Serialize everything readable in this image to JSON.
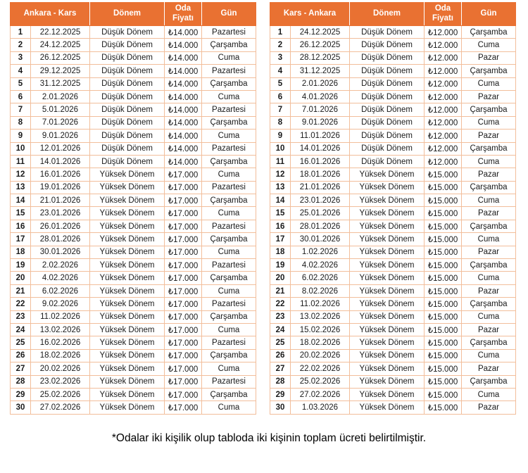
{
  "colors": {
    "header_bg": "#E97132",
    "header_text": "#FFFFFF",
    "border": "#F2BE9B",
    "cell_text": "#1A1A1A"
  },
  "tables": [
    {
      "route": "Ankara - Kars",
      "headers": [
        "Dönem",
        "Oda Fiyatı",
        "Gün"
      ],
      "rows": [
        [
          "1",
          "22.12.2025",
          "Düşük Dönem",
          "₺14.000",
          "Pazartesi"
        ],
        [
          "2",
          "24.12.2025",
          "Düşük Dönem",
          "₺14.000",
          "Çarşamba"
        ],
        [
          "3",
          "26.12.2025",
          "Düşük Dönem",
          "₺14.000",
          "Cuma"
        ],
        [
          "4",
          "29.12.2025",
          "Düşük Dönem",
          "₺14.000",
          "Pazartesi"
        ],
        [
          "5",
          "31.12.2025",
          "Düşük Dönem",
          "₺14.000",
          "Çarşamba"
        ],
        [
          "6",
          "2.01.2026",
          "Düşük Dönem",
          "₺14.000",
          "Cuma"
        ],
        [
          "7",
          "5.01.2026",
          "Düşük Dönem",
          "₺14.000",
          "Pazartesi"
        ],
        [
          "8",
          "7.01.2026",
          "Düşük Dönem",
          "₺14.000",
          "Çarşamba"
        ],
        [
          "9",
          "9.01.2026",
          "Düşük Dönem",
          "₺14.000",
          "Cuma"
        ],
        [
          "10",
          "12.01.2026",
          "Düşük Dönem",
          "₺14.000",
          "Pazartesi"
        ],
        [
          "11",
          "14.01.2026",
          "Düşük Dönem",
          "₺14.000",
          "Çarşamba"
        ],
        [
          "12",
          "16.01.2026",
          "Yüksek Dönem",
          "₺17.000",
          "Cuma"
        ],
        [
          "13",
          "19.01.2026",
          "Yüksek Dönem",
          "₺17.000",
          "Pazartesi"
        ],
        [
          "14",
          "21.01.2026",
          "Yüksek Dönem",
          "₺17.000",
          "Çarşamba"
        ],
        [
          "15",
          "23.01.2026",
          "Yüksek Dönem",
          "₺17.000",
          "Cuma"
        ],
        [
          "16",
          "26.01.2026",
          "Yüksek Dönem",
          "₺17.000",
          "Pazartesi"
        ],
        [
          "17",
          "28.01.2026",
          "Yüksek Dönem",
          "₺17.000",
          "Çarşamba"
        ],
        [
          "18",
          "30.01.2026",
          "Yüksek Dönem",
          "₺17.000",
          "Cuma"
        ],
        [
          "19",
          "2.02.2026",
          "Yüksek Dönem",
          "₺17.000",
          "Pazartesi"
        ],
        [
          "20",
          "4.02.2026",
          "Yüksek Dönem",
          "₺17.000",
          "Çarşamba"
        ],
        [
          "21",
          "6.02.2026",
          "Yüksek Dönem",
          "₺17.000",
          "Cuma"
        ],
        [
          "22",
          "9.02.2026",
          "Yüksek Dönem",
          "₺17.000",
          "Pazartesi"
        ],
        [
          "23",
          "11.02.2026",
          "Yüksek Dönem",
          "₺17.000",
          "Çarşamba"
        ],
        [
          "24",
          "13.02.2026",
          "Yüksek Dönem",
          "₺17.000",
          "Cuma"
        ],
        [
          "25",
          "16.02.2026",
          "Yüksek Dönem",
          "₺17.000",
          "Pazartesi"
        ],
        [
          "26",
          "18.02.2026",
          "Yüksek Dönem",
          "₺17.000",
          "Çarşamba"
        ],
        [
          "27",
          "20.02.2026",
          "Yüksek Dönem",
          "₺17.000",
          "Cuma"
        ],
        [
          "28",
          "23.02.2026",
          "Yüksek Dönem",
          "₺17.000",
          "Pazartesi"
        ],
        [
          "29",
          "25.02.2026",
          "Yüksek Dönem",
          "₺17.000",
          "Çarşamba"
        ],
        [
          "30",
          "27.02.2026",
          "Yüksek Dönem",
          "₺17.000",
          "Cuma"
        ]
      ]
    },
    {
      "route": "Kars - Ankara",
      "headers": [
        "Dönem",
        "Oda Fiyatı",
        "Gün"
      ],
      "rows": [
        [
          "1",
          "24.12.2025",
          "Düşük Dönem",
          "₺12.000",
          "Çarşamba"
        ],
        [
          "2",
          "26.12.2025",
          "Düşük Dönem",
          "₺12.000",
          "Cuma"
        ],
        [
          "3",
          "28.12.2025",
          "Düşük Dönem",
          "₺12.000",
          "Pazar"
        ],
        [
          "4",
          "31.12.2025",
          "Düşük Dönem",
          "₺12.000",
          "Çarşamba"
        ],
        [
          "5",
          "2.01.2026",
          "Düşük Dönem",
          "₺12.000",
          "Cuma"
        ],
        [
          "6",
          "4.01.2026",
          "Düşük Dönem",
          "₺12.000",
          "Pazar"
        ],
        [
          "7",
          "7.01.2026",
          "Düşük Dönem",
          "₺12.000",
          "Çarşamba"
        ],
        [
          "8",
          "9.01.2026",
          "Düşük Dönem",
          "₺12.000",
          "Cuma"
        ],
        [
          "9",
          "11.01.2026",
          "Düşük Dönem",
          "₺12.000",
          "Pazar"
        ],
        [
          "10",
          "14.01.2026",
          "Düşük Dönem",
          "₺12.000",
          "Çarşamba"
        ],
        [
          "11",
          "16.01.2026",
          "Düşük Dönem",
          "₺12.000",
          "Cuma"
        ],
        [
          "12",
          "18.01.2026",
          "Yüksek Dönem",
          "₺15.000",
          "Pazar"
        ],
        [
          "13",
          "21.01.2026",
          "Yüksek Dönem",
          "₺15.000",
          "Çarşamba"
        ],
        [
          "14",
          "23.01.2026",
          "Yüksek Dönem",
          "₺15.000",
          "Cuma"
        ],
        [
          "15",
          "25.01.2026",
          "Yüksek Dönem",
          "₺15.000",
          "Pazar"
        ],
        [
          "16",
          "28.01.2026",
          "Yüksek Dönem",
          "₺15.000",
          "Çarşamba"
        ],
        [
          "17",
          "30.01.2026",
          "Yüksek Dönem",
          "₺15.000",
          "Cuma"
        ],
        [
          "18",
          "1.02.2026",
          "Yüksek Dönem",
          "₺15.000",
          "Pazar"
        ],
        [
          "19",
          "4.02.2026",
          "Yüksek Dönem",
          "₺15.000",
          "Çarşamba"
        ],
        [
          "20",
          "6.02.2026",
          "Yüksek Dönem",
          "₺15.000",
          "Cuma"
        ],
        [
          "21",
          "8.02.2026",
          "Yüksek Dönem",
          "₺15.000",
          "Pazar"
        ],
        [
          "22",
          "11.02.2026",
          "Yüksek Dönem",
          "₺15.000",
          "Çarşamba"
        ],
        [
          "23",
          "13.02.2026",
          "Yüksek Dönem",
          "₺15.000",
          "Cuma"
        ],
        [
          "24",
          "15.02.2026",
          "Yüksek Dönem",
          "₺15.000",
          "Pazar"
        ],
        [
          "25",
          "18.02.2026",
          "Yüksek Dönem",
          "₺15.000",
          "Çarşamba"
        ],
        [
          "26",
          "20.02.2026",
          "Yüksek Dönem",
          "₺15.000",
          "Cuma"
        ],
        [
          "27",
          "22.02.2026",
          "Yüksek Dönem",
          "₺15.000",
          "Pazar"
        ],
        [
          "28",
          "25.02.2026",
          "Yüksek Dönem",
          "₺15.000",
          "Çarşamba"
        ],
        [
          "29",
          "27.02.2026",
          "Yüksek Dönem",
          "₺15.000",
          "Cuma"
        ],
        [
          "30",
          "1.03.2026",
          "Yüksek Dönem",
          "₺15.000",
          "Pazar"
        ]
      ]
    }
  ],
  "footnote": "*Odalar iki kişilik olup tabloda iki kişinin toplam ücreti belirtilmiştir."
}
